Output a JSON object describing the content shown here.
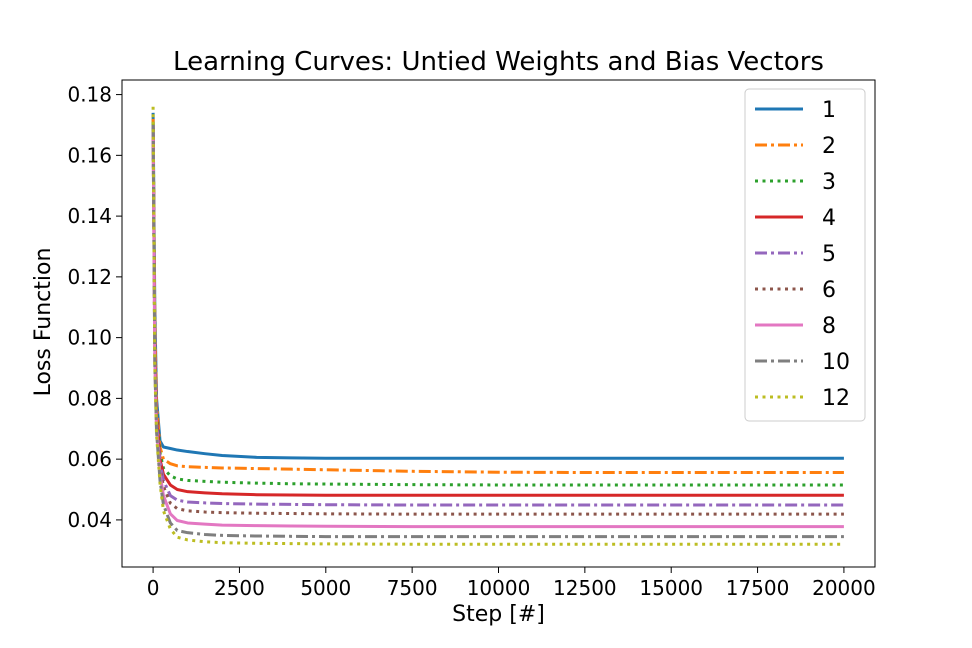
{
  "chart_data": {
    "type": "line",
    "title": "Learning Curves: Untied Weights and Bias Vectors",
    "xlabel": "Step [#]",
    "ylabel": "Loss Function",
    "xlim": [
      -900,
      20900
    ],
    "ylim": [
      0.0245,
      0.1848
    ],
    "xticks": [
      0,
      2500,
      5000,
      7500,
      10000,
      12500,
      15000,
      17500,
      20000
    ],
    "xtick_labels": [
      "0",
      "2500",
      "5000",
      "7500",
      "10000",
      "12500",
      "15000",
      "17500",
      "20000"
    ],
    "yticks": [
      0.04,
      0.06,
      0.08,
      0.1,
      0.12,
      0.14,
      0.16,
      0.18
    ],
    "ytick_labels": [
      "0.04",
      "0.06",
      "0.08",
      "0.10",
      "0.12",
      "0.14",
      "0.16",
      "0.18"
    ],
    "grid": false,
    "legend_position": "top-right",
    "x": [
      0,
      50,
      100,
      200,
      300,
      500,
      700,
      1000,
      1500,
      2000,
      3000,
      4000,
      5000,
      7500,
      10000,
      12500,
      15000,
      17500,
      20000
    ],
    "series": [
      {
        "name": "1",
        "color": "#1f77b4",
        "style": "solid",
        "values": [
          0.174,
          0.11,
          0.08,
          0.066,
          0.064,
          0.0635,
          0.063,
          0.0625,
          0.0618,
          0.0612,
          0.0606,
          0.0604,
          0.0603,
          0.0603,
          0.0603,
          0.0603,
          0.0603,
          0.0603,
          0.0603
        ]
      },
      {
        "name": "2",
        "color": "#ff7f0e",
        "style": "dashdot",
        "values": [
          0.172,
          0.105,
          0.078,
          0.064,
          0.06,
          0.0585,
          0.0578,
          0.0575,
          0.0573,
          0.0571,
          0.0569,
          0.0567,
          0.0565,
          0.056,
          0.0557,
          0.0556,
          0.0556,
          0.0556,
          0.0556
        ]
      },
      {
        "name": "3",
        "color": "#2ca02c",
        "style": "dotted",
        "values": [
          0.171,
          0.1,
          0.075,
          0.062,
          0.057,
          0.0545,
          0.0535,
          0.053,
          0.0527,
          0.0524,
          0.0521,
          0.0519,
          0.0518,
          0.0516,
          0.0515,
          0.0515,
          0.0515,
          0.0515,
          0.0515
        ]
      },
      {
        "name": "4",
        "color": "#d62728",
        "style": "solid",
        "values": [
          0.17,
          0.098,
          0.074,
          0.06,
          0.055,
          0.0515,
          0.05,
          0.0493,
          0.0489,
          0.0486,
          0.0483,
          0.0482,
          0.0481,
          0.0481,
          0.0481,
          0.0481,
          0.0481,
          0.0481,
          0.0481
        ]
      },
      {
        "name": "5",
        "color": "#9467bd",
        "style": "dashdot",
        "values": [
          0.17,
          0.096,
          0.072,
          0.059,
          0.053,
          0.048,
          0.0465,
          0.0459,
          0.0456,
          0.0454,
          0.0452,
          0.0451,
          0.045,
          0.0449,
          0.0449,
          0.0449,
          0.0449,
          0.0449,
          0.0449
        ]
      },
      {
        "name": "6",
        "color": "#8c564b",
        "style": "dotted",
        "values": [
          0.169,
          0.094,
          0.071,
          0.057,
          0.051,
          0.0455,
          0.0437,
          0.043,
          0.0426,
          0.0424,
          0.0422,
          0.0421,
          0.042,
          0.0419,
          0.0419,
          0.0419,
          0.0419,
          0.0419,
          0.0419
        ]
      },
      {
        "name": "8",
        "color": "#e377c2",
        "style": "solid",
        "values": [
          0.168,
          0.092,
          0.07,
          0.055,
          0.048,
          0.042,
          0.0398,
          0.039,
          0.0386,
          0.0383,
          0.0381,
          0.038,
          0.0379,
          0.0378,
          0.0378,
          0.0378,
          0.0378,
          0.0378,
          0.0378
        ]
      },
      {
        "name": "10",
        "color": "#7f7f7f",
        "style": "dashdot",
        "values": [
          0.17,
          0.091,
          0.069,
          0.053,
          0.045,
          0.039,
          0.0365,
          0.0358,
          0.0352,
          0.0349,
          0.0347,
          0.0346,
          0.0345,
          0.0345,
          0.0345,
          0.0345,
          0.0345,
          0.0345,
          0.0345
        ]
      },
      {
        "name": "12",
        "color": "#bcbd22",
        "style": "dotted",
        "values": [
          0.176,
          0.09,
          0.068,
          0.052,
          0.043,
          0.037,
          0.0343,
          0.0334,
          0.0328,
          0.0325,
          0.0323,
          0.0322,
          0.0321,
          0.032,
          0.032,
          0.032,
          0.032,
          0.032,
          0.032
        ]
      }
    ]
  }
}
